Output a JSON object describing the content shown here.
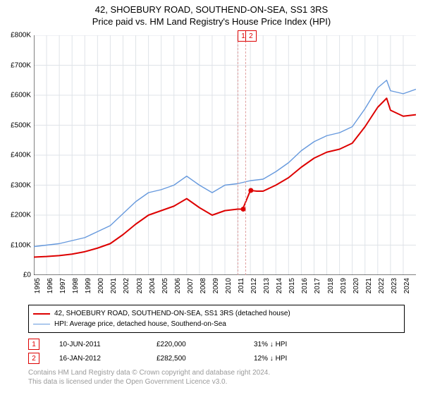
{
  "title": {
    "line1": "42, SHOEBURY ROAD, SOUTHEND-ON-SEA, SS1 3RS",
    "line2": "Price paid vs. HM Land Registry's House Price Index (HPI)"
  },
  "chart": {
    "type": "line",
    "background_color": "#ffffff",
    "grid_color": "#dfe3e8",
    "title_fontsize": 13,
    "axis_fontsize": 10,
    "y": {
      "min": 0,
      "max": 800000,
      "step": 100000,
      "labels": [
        "£0",
        "£100K",
        "£200K",
        "£300K",
        "£400K",
        "£500K",
        "£600K",
        "£700K",
        "£800K"
      ]
    },
    "x": {
      "min": 1995,
      "max": 2025,
      "labels": [
        "1995",
        "1996",
        "1997",
        "1998",
        "1999",
        "2000",
        "2001",
        "2002",
        "2003",
        "2004",
        "2005",
        "2006",
        "2007",
        "2008",
        "2009",
        "2010",
        "2011",
        "2012",
        "2013",
        "2014",
        "2015",
        "2016",
        "2017",
        "2018",
        "2019",
        "2020",
        "2021",
        "2022",
        "2023",
        "2024"
      ]
    },
    "series": [
      {
        "name": "property",
        "label": "42, SHOEBURY ROAD, SOUTHEND-ON-SEA, SS1 3RS (detached house)",
        "color": "#dd0000",
        "width": 2,
        "points": [
          [
            1995,
            60000
          ],
          [
            1996,
            62000
          ],
          [
            1997,
            65000
          ],
          [
            1998,
            70000
          ],
          [
            1999,
            78000
          ],
          [
            2000,
            90000
          ],
          [
            2001,
            105000
          ],
          [
            2002,
            135000
          ],
          [
            2003,
            170000
          ],
          [
            2004,
            200000
          ],
          [
            2005,
            215000
          ],
          [
            2006,
            230000
          ],
          [
            2007,
            255000
          ],
          [
            2008,
            225000
          ],
          [
            2009,
            200000
          ],
          [
            2010,
            215000
          ],
          [
            2011,
            220000
          ],
          [
            2011.4,
            220000
          ],
          [
            2012.0,
            282500
          ],
          [
            2012.5,
            280000
          ],
          [
            2013,
            280000
          ],
          [
            2014,
            300000
          ],
          [
            2015,
            325000
          ],
          [
            2016,
            360000
          ],
          [
            2017,
            390000
          ],
          [
            2018,
            410000
          ],
          [
            2019,
            420000
          ],
          [
            2020,
            440000
          ],
          [
            2021,
            495000
          ],
          [
            2022,
            560000
          ],
          [
            2022.7,
            590000
          ],
          [
            2023,
            550000
          ],
          [
            2024,
            530000
          ],
          [
            2025,
            535000
          ]
        ]
      },
      {
        "name": "hpi",
        "label": "HPI: Average price, detached house, Southend-on-Sea",
        "color": "#6699dd",
        "width": 1.4,
        "points": [
          [
            1995,
            95000
          ],
          [
            1996,
            100000
          ],
          [
            1997,
            105000
          ],
          [
            1998,
            115000
          ],
          [
            1999,
            125000
          ],
          [
            2000,
            145000
          ],
          [
            2001,
            165000
          ],
          [
            2002,
            205000
          ],
          [
            2003,
            245000
          ],
          [
            2004,
            275000
          ],
          [
            2005,
            285000
          ],
          [
            2006,
            300000
          ],
          [
            2007,
            330000
          ],
          [
            2008,
            300000
          ],
          [
            2009,
            275000
          ],
          [
            2010,
            300000
          ],
          [
            2011,
            305000
          ],
          [
            2012,
            315000
          ],
          [
            2013,
            320000
          ],
          [
            2014,
            345000
          ],
          [
            2015,
            375000
          ],
          [
            2016,
            415000
          ],
          [
            2017,
            445000
          ],
          [
            2018,
            465000
          ],
          [
            2019,
            475000
          ],
          [
            2020,
            495000
          ],
          [
            2021,
            555000
          ],
          [
            2022,
            625000
          ],
          [
            2022.7,
            650000
          ],
          [
            2023,
            615000
          ],
          [
            2024,
            605000
          ],
          [
            2025,
            620000
          ]
        ]
      }
    ],
    "sale_markers": [
      {
        "n": "1",
        "year": 2011.44
      },
      {
        "n": "2",
        "year": 2012.04
      }
    ],
    "marker_color": "#dd0000",
    "marker_vline_color": "#e0a0a0"
  },
  "legend": {
    "rows": [
      {
        "color": "#dd0000",
        "width": 2,
        "text": "42, SHOEBURY ROAD, SOUTHEND-ON-SEA, SS1 3RS (detached house)"
      },
      {
        "color": "#6699dd",
        "width": 1.4,
        "text": "HPI: Average price, detached house, Southend-on-Sea"
      }
    ]
  },
  "sales": [
    {
      "n": "1",
      "date": "10-JUN-2011",
      "price": "£220,000",
      "diff": "31% ↓ HPI"
    },
    {
      "n": "2",
      "date": "16-JAN-2012",
      "price": "£282,500",
      "diff": "12% ↓ HPI"
    }
  ],
  "sales_columns": {
    "date_w": 110,
    "price_w": 110,
    "diff_w": 110
  },
  "footer": {
    "line1": "Contains HM Land Registry data © Crown copyright and database right 2024.",
    "line2": "This data is licensed under the Open Government Licence v3.0."
  }
}
